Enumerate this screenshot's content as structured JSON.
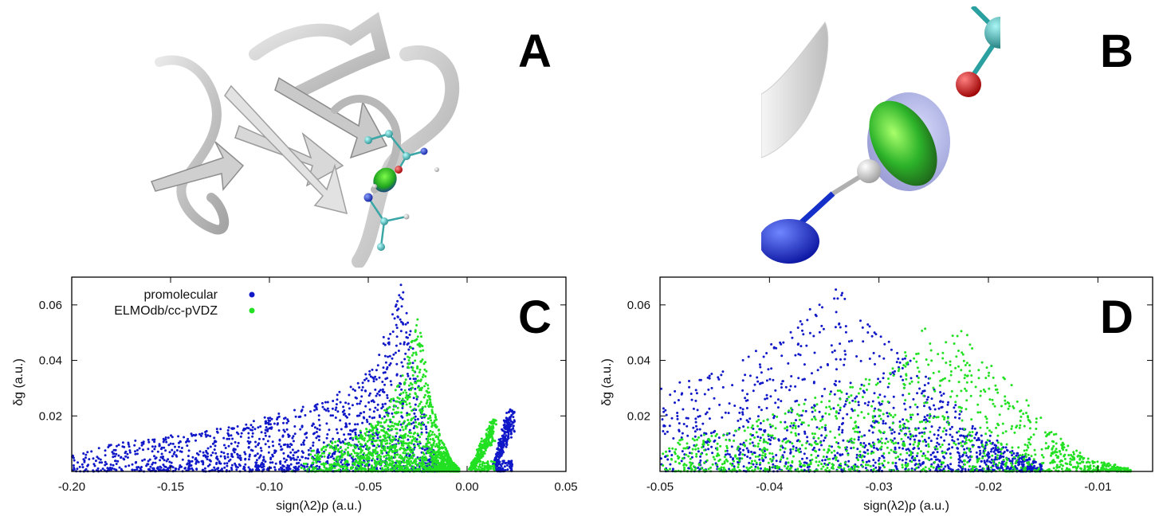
{
  "panels": {
    "a_label": "A",
    "b_label": "B",
    "c_label": "C",
    "d_label": "D"
  },
  "colors": {
    "promolecular": "#1018c8",
    "elmodb": "#22e022",
    "ribbon": "#bdbdbd",
    "carbon": "#3aa6a6",
    "oxygen": "#d01010",
    "nitrogen": "#1020c0",
    "hydrogen": "#e8e8e8"
  },
  "chart_data": [
    {
      "type": "scatter",
      "panel": "C",
      "xlabel": "sign(λ2)ρ (a.u.)",
      "ylabel": "δg (a.u.)",
      "xlim": [
        -0.2,
        0.05
      ],
      "ylim": [
        0.0,
        0.07
      ],
      "xticks": [
        "-0.20",
        "-0.15",
        "-0.10",
        "-0.05",
        "0.00",
        "0.05"
      ],
      "yticks": [
        "0.02",
        "0.04",
        "0.06"
      ],
      "legend_position": "top-left",
      "series": [
        {
          "name": "promolecular",
          "color": "#1018c8",
          "envelope": [
            [
              -0.2,
              0.006
            ],
            [
              -0.18,
              0.01
            ],
            [
              -0.16,
              0.012
            ],
            [
              -0.14,
              0.014
            ],
            [
              -0.12,
              0.016
            ],
            [
              -0.1,
              0.02
            ],
            [
              -0.08,
              0.024
            ],
            [
              -0.06,
              0.03
            ],
            [
              -0.05,
              0.036
            ],
            [
              -0.045,
              0.044
            ],
            [
              -0.04,
              0.052
            ],
            [
              -0.035,
              0.062
            ],
            [
              -0.033,
              0.069
            ],
            [
              -0.03,
              0.06
            ],
            [
              -0.027,
              0.048
            ],
            [
              -0.024,
              0.03
            ],
            [
              -0.02,
              0.014
            ],
            [
              -0.015,
              0.004
            ]
          ],
          "branch_positive": [
            [
              0.014,
              0.002
            ],
            [
              0.016,
              0.008
            ],
            [
              0.018,
              0.014
            ],
            [
              0.02,
              0.019
            ],
            [
              0.022,
              0.023
            ],
            [
              0.023,
              0.024
            ]
          ]
        },
        {
          "name": "ELMOdb/cc-pVDZ",
          "color": "#22e022",
          "envelope": [
            [
              -0.09,
              0.004
            ],
            [
              -0.07,
              0.01
            ],
            [
              -0.05,
              0.016
            ],
            [
              -0.04,
              0.024
            ],
            [
              -0.032,
              0.036
            ],
            [
              -0.028,
              0.048
            ],
            [
              -0.025,
              0.056
            ],
            [
              -0.022,
              0.044
            ],
            [
              -0.018,
              0.026
            ],
            [
              -0.013,
              0.012
            ],
            [
              -0.008,
              0.004
            ],
            [
              -0.004,
              0.001
            ]
          ],
          "branch_positive": [
            [
              0.002,
              0.001
            ],
            [
              0.005,
              0.006
            ],
            [
              0.008,
              0.011
            ],
            [
              0.011,
              0.016
            ],
            [
              0.013,
              0.019
            ],
            [
              0.014,
              0.02
            ]
          ]
        }
      ]
    },
    {
      "type": "scatter",
      "panel": "D",
      "xlabel": "sign(λ2)ρ (a.u.)",
      "ylabel": "δg (a.u.)",
      "xlim": [
        -0.05,
        -0.005
      ],
      "ylim": [
        0.0,
        0.07
      ],
      "xticks": [
        "-0.05",
        "-0.04",
        "-0.03",
        "-0.02",
        "-0.01"
      ],
      "yticks": [
        "0.02",
        "0.04",
        "0.06"
      ],
      "series": [
        {
          "name": "promolecular",
          "color": "#1018c8",
          "envelope": [
            [
              -0.05,
              0.03
            ],
            [
              -0.045,
              0.036
            ],
            [
              -0.04,
              0.046
            ],
            [
              -0.037,
              0.056
            ],
            [
              -0.035,
              0.064
            ],
            [
              -0.034,
              0.069
            ],
            [
              -0.032,
              0.058
            ],
            [
              -0.03,
              0.05
            ],
            [
              -0.027,
              0.04
            ],
            [
              -0.024,
              0.028
            ],
            [
              -0.021,
              0.016
            ],
            [
              -0.018,
              0.008
            ],
            [
              -0.015,
              0.003
            ]
          ]
        },
        {
          "name": "ELMOdb/cc-pVDZ",
          "color": "#22e022",
          "envelope": [
            [
              -0.05,
              0.01
            ],
            [
              -0.045,
              0.014
            ],
            [
              -0.04,
              0.02
            ],
            [
              -0.035,
              0.028
            ],
            [
              -0.03,
              0.036
            ],
            [
              -0.027,
              0.046
            ],
            [
              -0.025,
              0.056
            ],
            [
              -0.022,
              0.05
            ],
            [
              -0.02,
              0.04
            ],
            [
              -0.017,
              0.028
            ],
            [
              -0.014,
              0.014
            ],
            [
              -0.011,
              0.005
            ],
            [
              -0.008,
              0.002
            ],
            [
              -0.007,
              0.001
            ]
          ]
        }
      ]
    }
  ]
}
